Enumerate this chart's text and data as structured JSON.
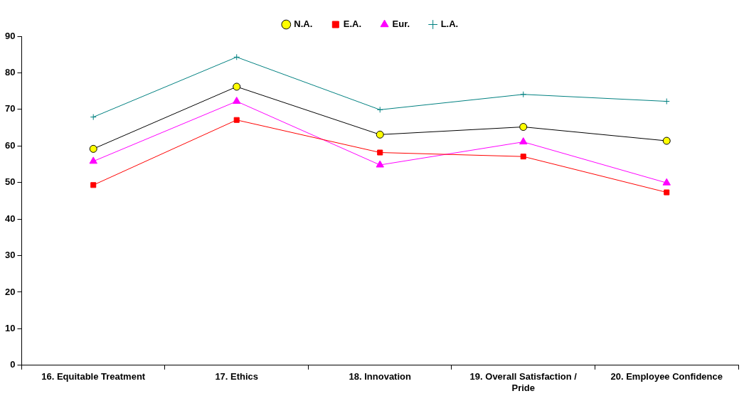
{
  "chart_data": {
    "type": "line",
    "categories": [
      "16. Equitable Treatment",
      "17. Ethics",
      "18. Innovation",
      "19. Overall Satisfaction / Pride",
      "20. Employee Confidence"
    ],
    "series": [
      {
        "name": "N.A.",
        "color": "#000000",
        "colors": [
          "#ffff00",
          "#ffff00",
          "#ffff00",
          "#ffff00",
          "#ffff00"
        ],
        "marker": "circle",
        "values": [
          59.2,
          76.2,
          63.1,
          65.2,
          61.4
        ]
      },
      {
        "name": "E.A.",
        "color": "#ff0000",
        "marker": "square",
        "values": [
          49.3,
          67.1,
          58.2,
          57.1,
          47.3
        ]
      },
      {
        "name": "Eur.",
        "color": "#ff00ff",
        "marker": "triangle",
        "values": [
          55.8,
          72.2,
          54.8,
          61.1,
          49.9
        ]
      },
      {
        "name": "L.A.",
        "color": "#008080",
        "marker": "cross",
        "values": [
          67.9,
          84.3,
          69.9,
          74.1,
          72.2
        ]
      }
    ],
    "ylim": [
      0,
      90
    ],
    "yticks": [
      0,
      10,
      20,
      30,
      40,
      50,
      60,
      70,
      80,
      90
    ],
    "grid": false,
    "legend": "top",
    "line_style": "solid"
  }
}
